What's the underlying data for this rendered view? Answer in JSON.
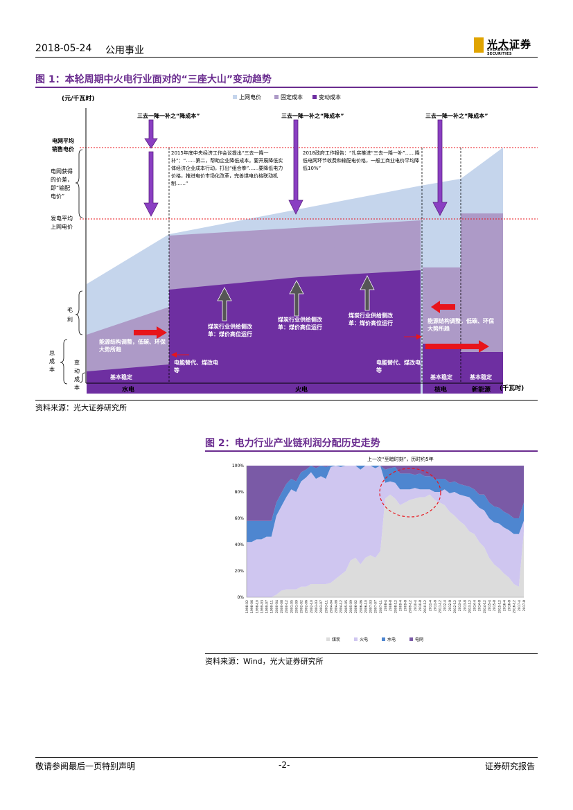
{
  "header": {
    "date": "2018-05-24",
    "sector": "公用事业",
    "logo_cn": "光大证券",
    "logo_en": "EVERBRIGHT SECURITIES"
  },
  "figure1": {
    "title": "图 1：本轮周期中火电行业面对的“三座大山”变动趋势",
    "unit_y": "(元/千瓦时)",
    "unit_x": "(千瓦时)",
    "legend": [
      "上网电价",
      "固定成本",
      "变动成本"
    ],
    "colors": {
      "grid_price": "#c5d5ec",
      "fixed_cost": "#ad9ac7",
      "variable_cost": "#6e2fa1",
      "arrow": "#8a3fc2",
      "red": "#e8141b"
    },
    "top_labels": [
      "三去一降一补之“降成本”",
      "三去一降一补之“降成本”",
      "三去一降一补之“降成本”"
    ],
    "left_labels": {
      "grid_avg": "电网平均销售电价",
      "grid_spread": "电网获得的价差，即“输配电价”",
      "gen_avg": "发电平均上网电价",
      "margin": "毛利",
      "total_cost": "总成本",
      "var_cost": "变动成本"
    },
    "note1": "2015年底中央经济工作会议提出“三去一降一补”：“……第二，帮助企业降低成本。要开展降低实体经济企业成本行动，打出“组合拳”……要降低电力价格，推进电价市场化改革，完善煤电价格联动机制……”",
    "note2": "2018政府工作报告：“扎实推进“三去一降一补”……降低电网环节收费和输配电价格，一般工商业电价平均降低10%”",
    "coal_reform": [
      "煤炭行业供给侧改革：煤价高位运行",
      "煤炭行业供给侧改革：煤价高位运行",
      "煤炭行业供给侧改革：煤价高位运行"
    ],
    "energy_adj_hydro": "能源结构调整，低碳、环保大势所趋",
    "energy_adj_nuclear": "能源结构调整，低碳、环保大势所趋",
    "elec_sub": [
      "电能替代、煤改电等",
      "电能替代、煤改电等"
    ],
    "stable": [
      "基本稳定",
      "基本稳定",
      "基本稳定"
    ],
    "x_labels": [
      "水电",
      "火电",
      "核电",
      "新能源"
    ]
  },
  "figure1_source": "资料来源：光大证券研究所",
  "figure2": {
    "title": "图 2：电力行业产业链利润分配历史走势",
    "annotation": "上一次“至暗时刻”，历时约5年",
    "legend": [
      "煤炭",
      "火电",
      "水电",
      "电网"
    ],
    "colors": {
      "coal": "#dcdcdc",
      "thermal": "#cfc6f0",
      "hydro": "#4e86d0",
      "grid": "#7a5aa6"
    },
    "chart_data": {
      "type": "area",
      "y_ticks": [
        "0%",
        "20%",
        "40%",
        "60%",
        "80%",
        "100%"
      ],
      "ylim": [
        0,
        100
      ],
      "x_ticks": [
        "1998-02",
        "1998-06",
        "1998-10",
        "1999-03",
        "1999-07",
        "1999-11",
        "2000-04",
        "2000-08",
        "2000-12",
        "2001-05",
        "2001-09",
        "2002-02",
        "2002-06",
        "2002-10",
        "2003-03",
        "2003-07",
        "2003-11",
        "2004-04",
        "2004-08",
        "2004-12",
        "2005-05",
        "2005-09",
        "2006-02",
        "2006-06",
        "2006-10",
        "2007-03",
        "2007-07",
        "2007-11",
        "2008-4",
        "2008-8",
        "2008-12",
        "2009-4",
        "2009-8",
        "2009-12",
        "2010-4",
        "2010-8",
        "2010-12",
        "2011-4",
        "2011-8",
        "2011-12",
        "2012-4",
        "2012-8",
        "2012-12",
        "2013-4",
        "2013-8",
        "2013-12",
        "2014-4",
        "2014-8",
        "2014-12",
        "2015-4",
        "2015-8",
        "2015-12",
        "2016-4",
        "2016-8",
        "2016-12",
        "2017-4",
        "2017-8"
      ],
      "series": [
        {
          "name": "煤炭",
          "values": [
            0,
            0,
            0,
            0,
            0,
            0,
            2,
            5,
            6,
            6,
            6,
            8,
            8,
            10,
            10,
            10,
            10,
            11,
            14,
            17,
            20,
            28,
            30,
            25,
            30,
            32,
            30,
            35,
            75,
            78,
            75,
            70,
            72,
            74,
            75,
            76,
            76,
            78,
            74,
            72,
            70,
            65,
            62,
            58,
            55,
            50,
            48,
            42,
            38,
            30,
            25,
            22,
            18,
            15,
            10,
            8,
            50
          ]
        },
        {
          "name": "火电",
          "values": [
            42,
            42,
            44,
            44,
            46,
            46,
            60,
            64,
            70,
            76,
            74,
            80,
            83,
            85,
            80,
            82,
            80,
            88,
            86,
            82,
            80,
            75,
            70,
            72,
            74,
            70,
            68,
            65,
            12,
            10,
            12,
            12,
            10,
            8,
            8,
            6,
            6,
            4,
            6,
            8,
            12,
            14,
            18,
            20,
            22,
            26,
            24,
            26,
            28,
            30,
            32,
            34,
            35,
            36,
            38,
            40,
            8
          ]
        },
        {
          "name": "水电",
          "values": [
            16,
            16,
            14,
            14,
            12,
            12,
            10,
            10,
            10,
            8,
            8,
            7,
            6,
            5,
            8,
            8,
            9,
            5,
            6,
            6,
            6,
            7,
            8,
            8,
            7,
            7,
            8,
            8,
            10,
            10,
            12,
            12,
            12,
            12,
            10,
            12,
            10,
            10,
            10,
            10,
            8,
            8,
            8,
            8,
            8,
            8,
            10,
            10,
            12,
            12,
            12,
            12,
            12,
            12,
            12,
            12,
            14
          ]
        },
        {
          "name": "电网",
          "values": [
            42,
            42,
            42,
            42,
            42,
            42,
            28,
            21,
            14,
            10,
            12,
            5,
            3,
            0,
            2,
            0,
            1,
            -4,
            -6,
            -5,
            -6,
            -10,
            -8,
            -5,
            -11,
            -9,
            -6,
            -8,
            3,
            2,
            1,
            6,
            6,
            6,
            7,
            6,
            8,
            8,
            10,
            10,
            10,
            13,
            12,
            14,
            15,
            16,
            18,
            22,
            22,
            28,
            31,
            32,
            35,
            37,
            40,
            40,
            28
          ]
        }
      ],
      "grid": false,
      "legend_position": "bottom"
    }
  },
  "figure2_source": "资料来源：Wind，光大证券研究所",
  "footer": {
    "left": "敬请参阅最后一页特别声明",
    "center": "-2-",
    "right": "证券研究报告"
  }
}
